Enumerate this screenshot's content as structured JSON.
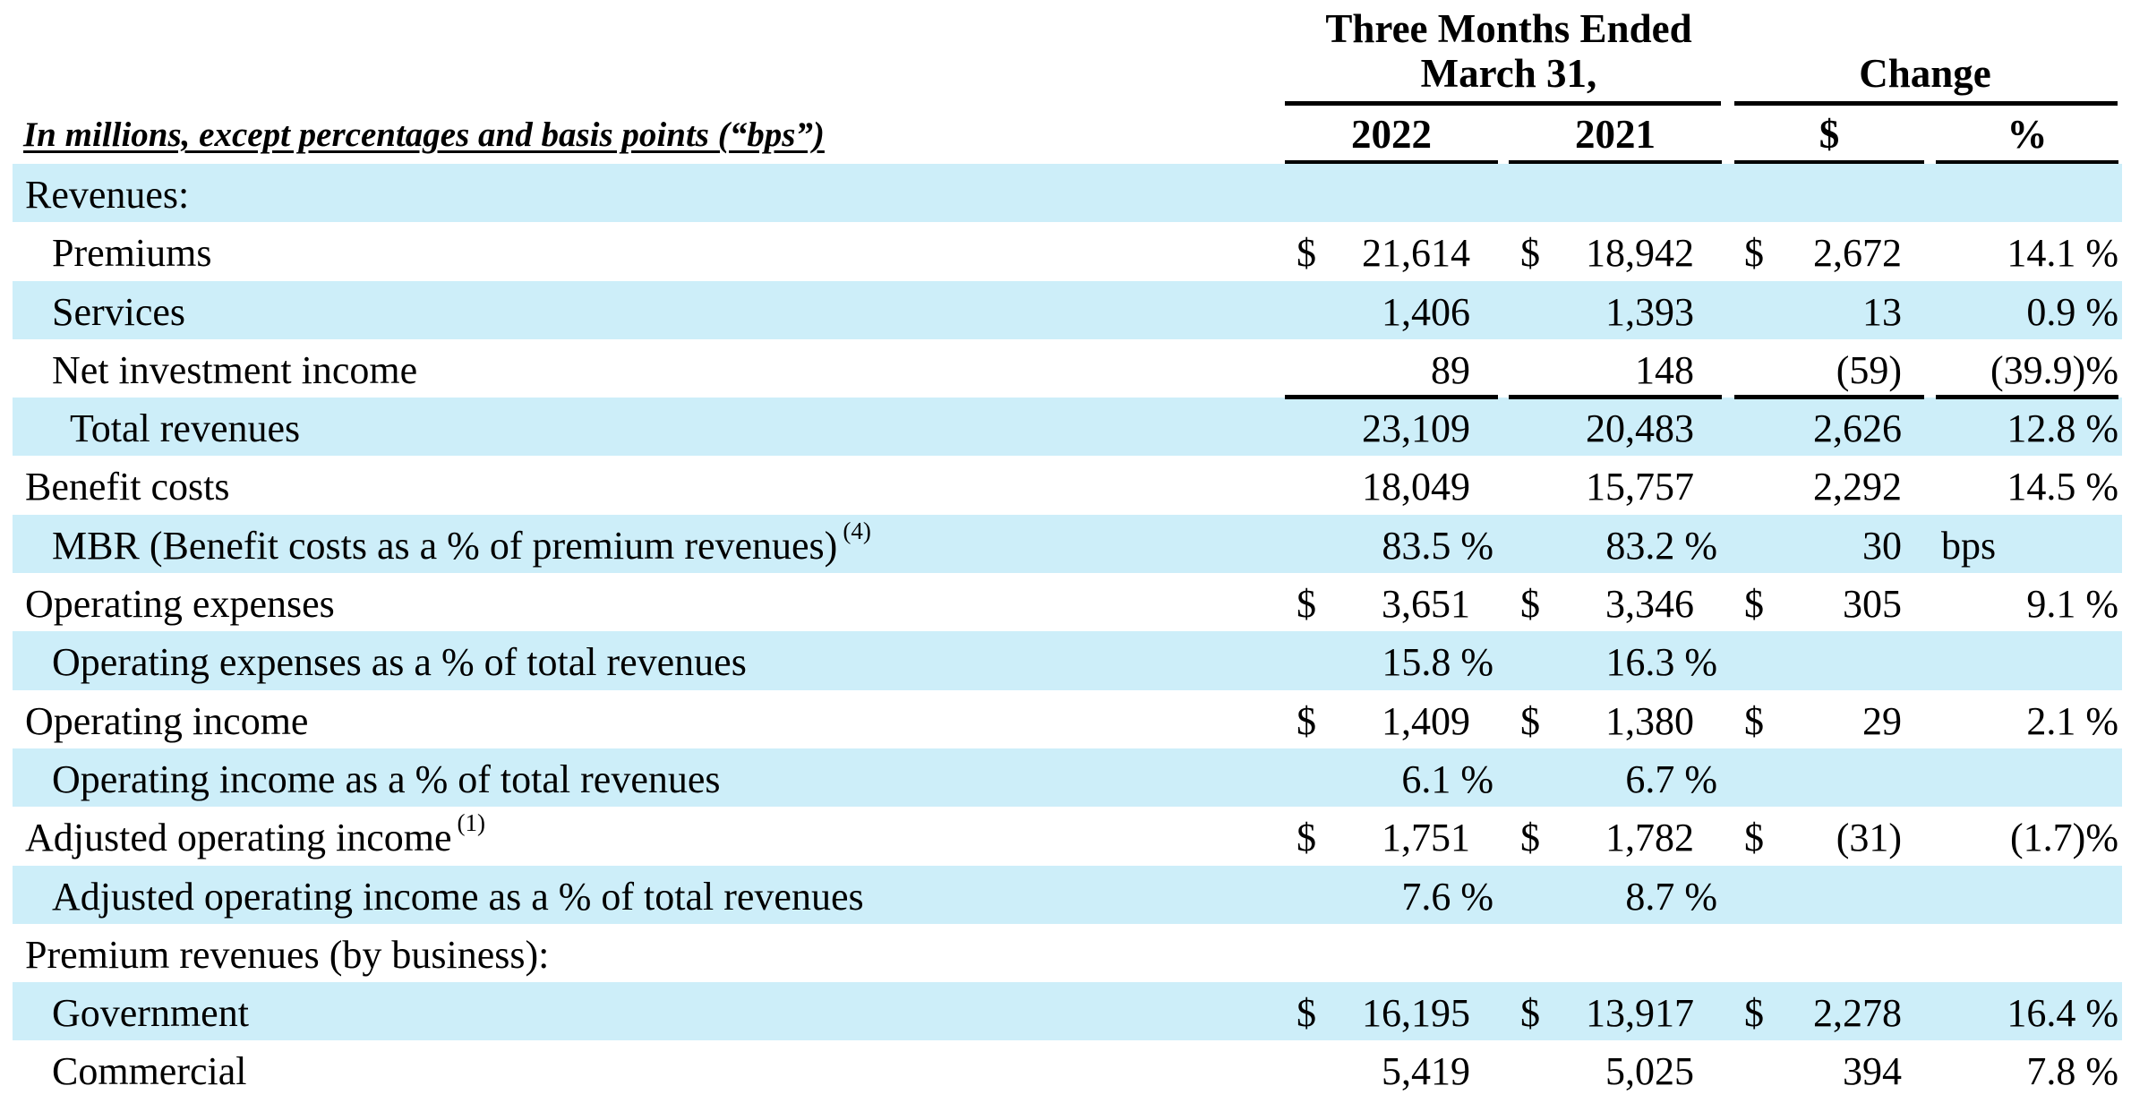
{
  "header": {
    "period_line1": "Three Months Ended",
    "period_line2": "March 31,",
    "change": "Change",
    "caption": "In millions, except percentages and basis points (“bps”)",
    "col_2022": "2022",
    "col_2021": "2021",
    "col_dollar": "$",
    "col_pct": "%"
  },
  "rows": [
    {
      "label": "Revenues:",
      "indent": 0,
      "shade": true,
      "cells": [
        "",
        "",
        "",
        "",
        "",
        "",
        ""
      ]
    },
    {
      "label": "Premiums",
      "indent": 1,
      "shade": false,
      "cells": [
        "$",
        "21,614",
        "$",
        "18,942",
        "$",
        "2,672",
        "14.1 %"
      ]
    },
    {
      "label": "Services",
      "indent": 1,
      "shade": true,
      "cells": [
        "",
        "1,406",
        "",
        "1,393",
        "",
        "13",
        "0.9 %"
      ]
    },
    {
      "label": "Net investment income",
      "indent": 1,
      "shade": false,
      "cells": [
        "",
        "89",
        "",
        "148",
        "",
        "(59)",
        "(39.9)%"
      ]
    },
    {
      "label": "Total revenues",
      "indent": 2,
      "shade": true,
      "cells": [
        "",
        "23,109",
        "",
        "20,483",
        "",
        "2,626",
        "12.8 %"
      ]
    },
    {
      "label": "Benefit costs",
      "indent": 0,
      "shade": false,
      "cells": [
        "",
        "18,049",
        "",
        "15,757",
        "",
        "2,292",
        "14.5 %"
      ]
    },
    {
      "label": "MBR (Benefit costs as a % of premium revenues)",
      "footnote": "(4)",
      "indent": 1,
      "shade": true,
      "cells": [
        "",
        "83.5 %",
        "",
        "83.2 %",
        "",
        "30",
        "bps"
      ]
    },
    {
      "label": "Operating expenses",
      "indent": 0,
      "shade": false,
      "cells": [
        "$",
        "3,651",
        "$",
        "3,346",
        "$",
        "305",
        "9.1 %"
      ]
    },
    {
      "label": "Operating expenses as a % of total revenues",
      "indent": 1,
      "shade": true,
      "cells": [
        "",
        "15.8 %",
        "",
        "16.3 %",
        "",
        "",
        ""
      ]
    },
    {
      "label": "Operating income",
      "indent": 0,
      "shade": false,
      "cells": [
        "$",
        "1,409",
        "$",
        "1,380",
        "$",
        "29",
        "2.1 %"
      ]
    },
    {
      "label": "Operating income as a % of total revenues",
      "indent": 1,
      "shade": true,
      "cells": [
        "",
        "6.1 %",
        "",
        "6.7 %",
        "",
        "",
        ""
      ]
    },
    {
      "label": "Adjusted operating income",
      "footnote": "(1)",
      "indent": 0,
      "shade": false,
      "cells": [
        "$",
        "1,751",
        "$",
        "1,782",
        "$",
        "(31)",
        "(1.7)%"
      ]
    },
    {
      "label": "Adjusted operating income as a % of total revenues",
      "indent": 1,
      "shade": true,
      "cells": [
        "",
        "7.6 %",
        "",
        "8.7 %",
        "",
        "",
        ""
      ]
    },
    {
      "label": "Premium revenues (by business):",
      "indent": 0,
      "shade": false,
      "cells": [
        "",
        "",
        "",
        "",
        "",
        "",
        ""
      ]
    },
    {
      "label": "Government",
      "indent": 1,
      "shade": true,
      "cells": [
        "$",
        "16,195",
        "$",
        "13,917",
        "$",
        "2,278",
        "16.4 %"
      ]
    },
    {
      "label": "Commercial",
      "indent": 1,
      "shade": false,
      "cells": [
        "",
        "5,419",
        "",
        "5,025",
        "",
        "394",
        "7.8 %"
      ]
    }
  ]
}
